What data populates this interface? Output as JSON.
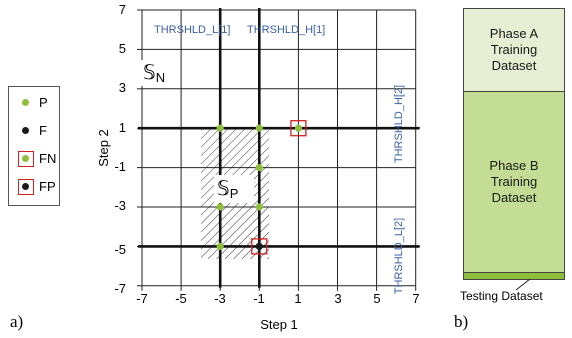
{
  "panel_a": {
    "label": "a)",
    "xlabel": "Step 1",
    "ylabel": "Step 2",
    "x_ticks": [
      "-7",
      "-5",
      "-3",
      "-1",
      "1",
      "3",
      "5",
      "7"
    ],
    "y_ticks": [
      "7",
      "5",
      "3",
      "1",
      "-1",
      "-3",
      "-5",
      "-7"
    ],
    "annotations": {
      "thrshld_l1": "THRSHLD_L[1]",
      "thrshld_h1": "THRSHLD_H[1]",
      "thrshld_h2": "THRSHLD_H[2]",
      "thrshld_l2": "THRSHLD_L[2]",
      "set_n_symbol": "𝕊",
      "set_n_sub": "N",
      "set_p_symbol": "𝕊",
      "set_p_sub": "P"
    },
    "points": [
      {
        "x": -3,
        "y": 1,
        "type": "P"
      },
      {
        "x": -1,
        "y": 1,
        "type": "P"
      },
      {
        "x": -1,
        "y": -1,
        "type": "P"
      },
      {
        "x": -3,
        "y": -3,
        "type": "P"
      },
      {
        "x": -1,
        "y": -3,
        "type": "P"
      },
      {
        "x": -3,
        "y": -5,
        "type": "P"
      },
      {
        "x": 1,
        "y": 1,
        "type": "FN"
      },
      {
        "x": -1,
        "y": -5,
        "type": "FP"
      }
    ],
    "colors": {
      "pass": "#8fbe3c",
      "fail": "#1a1a1a",
      "box": "#d21f1f",
      "annotation": "#3a5fa8",
      "hatch": "#222222"
    }
  },
  "legend": [
    {
      "key": "P",
      "label": "P"
    },
    {
      "key": "F",
      "label": "F"
    },
    {
      "key": "FN",
      "label": "FN"
    },
    {
      "key": "FP",
      "label": "FP"
    }
  ],
  "panel_b": {
    "label": "b)",
    "phase_a": "Phase A\nTraining\nDataset",
    "phase_b": "Phase B\nTraining\nDataset",
    "testing": "Testing Dataset",
    "colors": {
      "phase_a": "#e6efd4",
      "phase_b": "#c4dd94",
      "testing": "#8fbe3c"
    }
  }
}
